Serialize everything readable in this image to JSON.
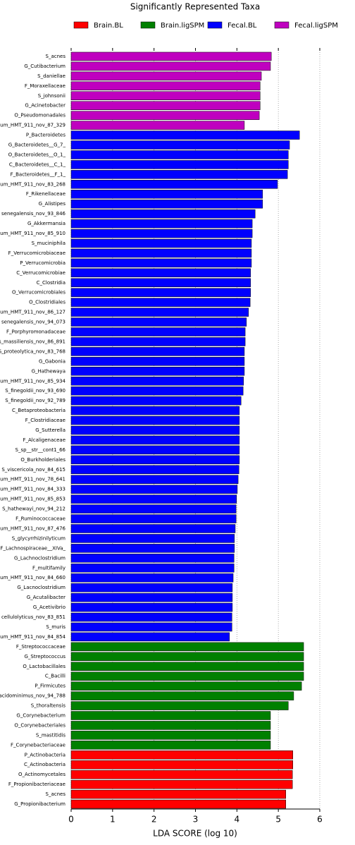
{
  "chart_data": {
    "type": "bar",
    "orientation": "horizontal",
    "title": "Significantly Represented Taxa",
    "x_label": "LDA SCORE (log 10)",
    "categories": [
      "S_acnes",
      "G_Cutibacterium",
      "S_daniellae",
      "F_Moraxellaceae",
      "S_johnsonii",
      "G_Acinetobacter",
      "O_Pseudomonadales",
      "um_HMT_911_nov_87_329",
      "P_Bacteroidetes",
      "G_Bacteroidetes__G_7_",
      "O_Bacteroidetes__O_1_",
      "C_Bacteroidetes__C_1_",
      "F_Bacteroidetes__F_1_",
      "um_HMT_911_nov_83_268",
      "F_Rikenellaceae",
      "G_Alistipes",
      "senegalensis_nov_93_846",
      "G_Akkermansia",
      "um_HMT_911_nov_85_910",
      "S_muciniphila",
      "F_Verrucomicrobiaceae",
      "P_Verrucomicrobia",
      "C_Verrucomicrobiae",
      "C_Clostridia",
      "O_Verrucomicrobiales",
      "O_Clostridiales",
      "um_HMT_911_nov_86_127",
      "senegalensis_nov_94_073",
      "F_Porphyromonadaceae",
      "s_massiliensis_nov_86_891",
      "S_proteolytica_nov_83_768",
      "G_Gabonia",
      "G_Hathewaya",
      "um_HMT_911_nov_85_934",
      "S_finegoldii_nov_93_690",
      "S_finegoldii_nov_92_789",
      "C_Betaproteobacteria",
      "F_Clostridiaceae",
      "G_Sutterella",
      "F_Alcaligenaceae",
      "S_sp__str__cont1_66",
      "O_Burkholderiales",
      "S_viscericola_nov_84_615",
      "um_HMT_911_nov_78_641",
      "um_HMT_911_nov_84_333",
      "um_HMT_911_nov_85_853",
      "S_hathewayi_nov_94_212",
      "F_Ruminococcaceae",
      "um_HMT_911_nov_87_476",
      "S_glycyrrhizinilyticum",
      "F_Lachnospiraceae__XIVa_",
      "G_Lachnoclostridium",
      "F_multifamily",
      "um_HMT_911_nov_84_660",
      "G_Lacnoclostridium",
      "G_Acutalibacter",
      "G_Acetivibrio",
      "cellulolyticus_nov_83_851",
      "S_muris",
      "um_HMT_911_nov_84_854",
      "F_Streptococcaceae",
      "G_Streptococcus",
      "O_Lactobacillales",
      "C_Bacilli",
      "P_Firmicutes",
      "acidominimus_nov_94_788",
      "S_thoraltensis",
      "G_Corynebacterium",
      "O_Corynebacteriales",
      "S_mastitidis",
      "F_Corynebacteriaceae",
      "P_Actinobacteria",
      "C_Actinobacteria",
      "O_Actinomycetales",
      "F_Propionibacteriaceae",
      "S_acnes",
      "G_Propionibacterium"
    ],
    "series": [
      {
        "name": "Brain.BL",
        "color": "#ff0000",
        "values": [
          null,
          null,
          null,
          null,
          null,
          null,
          null,
          null,
          null,
          null,
          null,
          null,
          null,
          null,
          null,
          null,
          null,
          null,
          null,
          null,
          null,
          null,
          null,
          null,
          null,
          null,
          null,
          null,
          null,
          null,
          null,
          null,
          null,
          null,
          null,
          null,
          null,
          null,
          null,
          null,
          null,
          null,
          null,
          null,
          null,
          null,
          null,
          null,
          null,
          null,
          null,
          null,
          null,
          null,
          null,
          null,
          null,
          null,
          null,
          null,
          null,
          null,
          null,
          null,
          null,
          null,
          null,
          null,
          null,
          null,
          null,
          5.35,
          5.35,
          5.34,
          5.34,
          5.18,
          5.18
        ]
      },
      {
        "name": "Brain.ligSPM",
        "color": "#008000",
        "values": [
          null,
          null,
          null,
          null,
          null,
          null,
          null,
          null,
          null,
          null,
          null,
          null,
          null,
          null,
          null,
          null,
          null,
          null,
          null,
          null,
          null,
          null,
          null,
          null,
          null,
          null,
          null,
          null,
          null,
          null,
          null,
          null,
          null,
          null,
          null,
          null,
          null,
          null,
          null,
          null,
          null,
          null,
          null,
          null,
          null,
          null,
          null,
          null,
          null,
          null,
          null,
          null,
          null,
          null,
          null,
          null,
          null,
          null,
          null,
          null,
          5.61,
          5.61,
          5.61,
          5.61,
          5.56,
          5.37,
          5.24,
          4.81,
          4.81,
          4.81,
          4.81,
          null,
          null,
          null,
          null,
          null,
          null
        ]
      },
      {
        "name": "Fecal.BL",
        "color": "#0000ff",
        "values": [
          null,
          null,
          null,
          null,
          null,
          null,
          null,
          null,
          5.51,
          5.27,
          5.24,
          5.24,
          5.22,
          4.98,
          4.62,
          4.62,
          4.44,
          4.37,
          4.37,
          4.35,
          4.35,
          4.35,
          4.33,
          4.33,
          4.33,
          4.32,
          4.28,
          4.23,
          4.2,
          4.2,
          4.18,
          4.18,
          4.18,
          4.16,
          4.15,
          4.1,
          4.06,
          4.06,
          4.06,
          4.06,
          4.06,
          4.06,
          4.05,
          4.03,
          4.01,
          3.99,
          3.98,
          3.98,
          3.96,
          3.94,
          3.94,
          3.93,
          3.93,
          3.91,
          3.89,
          3.89,
          3.89,
          3.88,
          3.88,
          3.82,
          null,
          null,
          null,
          null,
          null,
          null,
          null,
          null,
          null,
          null,
          null,
          null,
          null,
          null,
          null,
          null,
          null
        ]
      },
      {
        "name": "Fecal.ligSPM",
        "color": "#bf00bf",
        "values": [
          4.83,
          4.81,
          4.59,
          4.56,
          4.56,
          4.56,
          4.54,
          4.18,
          null,
          null,
          null,
          null,
          null,
          null,
          null,
          null,
          null,
          null,
          null,
          null,
          null,
          null,
          null,
          null,
          null,
          null,
          null,
          null,
          null,
          null,
          null,
          null,
          null,
          null,
          null,
          null,
          null,
          null,
          null,
          null,
          null,
          null,
          null,
          null,
          null,
          null,
          null,
          null,
          null,
          null,
          null,
          null,
          null,
          null,
          null,
          null,
          null,
          null,
          null,
          null,
          null,
          null,
          null,
          null,
          null,
          null,
          null,
          null,
          null,
          null,
          null,
          null,
          null,
          null,
          null,
          null,
          null
        ]
      }
    ],
    "xlim": [
      0,
      6
    ],
    "xticks": [
      0,
      1,
      2,
      3,
      4,
      5,
      6
    ],
    "grid": true
  }
}
